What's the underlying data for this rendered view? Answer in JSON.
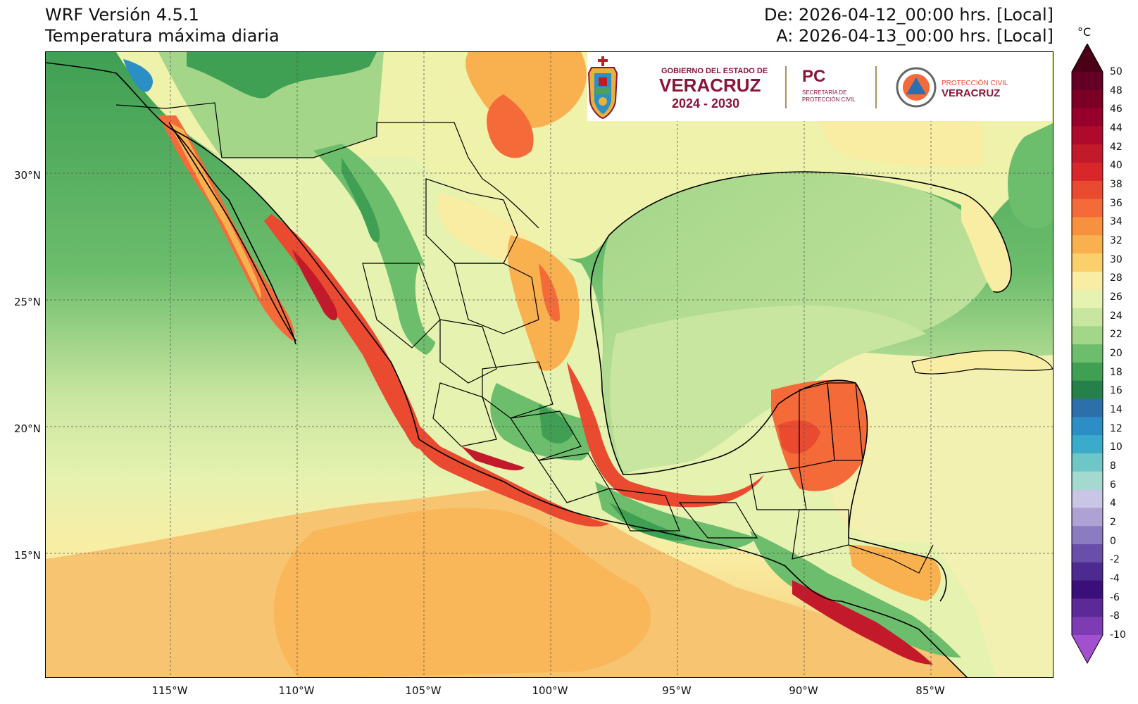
{
  "header": {
    "model": "WRF Versión 4.5.1",
    "variable": "Temperatura máxima diaria",
    "from": "De: 2026-04-12_00:00 hrs. [Local]",
    "to": "A: 2026-04-13_00:00 hrs. [Local]"
  },
  "logos": {
    "gov_line1": "GOBIERNO DEL ESTADO DE",
    "gov_line2": "VERACRUZ",
    "gov_line3": "2024 - 2030",
    "pc_title": "PC",
    "pc_line1": "SECRETARÍA DE",
    "pc_line2": "PROTECCIÓN CIVIL",
    "prot_line1": "PROTECCIÓN CIVIL",
    "prot_line2": "VERACRUZ",
    "colors": {
      "maroon": "#8a1538",
      "gold": "#b38e5d"
    }
  },
  "map": {
    "lat_labels": [
      "30°N",
      "25°N",
      "20°N",
      "15°N"
    ],
    "lon_labels": [
      "115°W",
      "110°W",
      "105°W",
      "100°W",
      "95°W",
      "90°W",
      "85°W"
    ],
    "lat_values": [
      30,
      25,
      20,
      15
    ],
    "lon_values": [
      -115,
      -110,
      -105,
      -100,
      -95,
      -90,
      -85
    ],
    "extent": {
      "lon_min": -120,
      "lon_max": -80,
      "lat_min": 10,
      "lat_max": 34.8
    },
    "gridlines": true,
    "colors": {
      "ocean_pacific_north": "#56ad66",
      "ocean_pacific_south": "#f5c87a",
      "gulf": "#bfe2a6",
      "caribbean": "#f3f1b2",
      "land_base": "#eef2ab",
      "hot": "#e8513a",
      "very_hot": "#c41a27",
      "mountain": "#4ba25e",
      "border": "#000000"
    }
  },
  "colorbar": {
    "unit": "°C",
    "ticks": [
      "50",
      "48",
      "46",
      "44",
      "42",
      "40",
      "38",
      "36",
      "34",
      "32",
      "30",
      "28",
      "26",
      "24",
      "22",
      "20",
      "18",
      "16",
      "14",
      "12",
      "10",
      "8",
      "6",
      "4",
      "2",
      "0",
      "-2",
      "-4",
      "-6",
      "-8",
      "-10"
    ],
    "colors": [
      "#4a0017",
      "#640023",
      "#7c0026",
      "#97002a",
      "#ae0a2c",
      "#c31a2b",
      "#d8262a",
      "#e94a30",
      "#f46b39",
      "#f7903f",
      "#f9b04f",
      "#fad06c",
      "#f9eda3",
      "#e6f2b0",
      "#c9e6a0",
      "#a4d68a",
      "#6cbd6c",
      "#3f9f53",
      "#25804a",
      "#2d6faa",
      "#2b8fc6",
      "#3aabcb",
      "#6ec6c6",
      "#a4d9cf",
      "#c9c5e4",
      "#aea2d3",
      "#8b7cc2",
      "#6a4faa",
      "#4d2a8f",
      "#3a0f7a",
      "#5c2a96",
      "#7d3cb3",
      "#a24fd0"
    ]
  }
}
